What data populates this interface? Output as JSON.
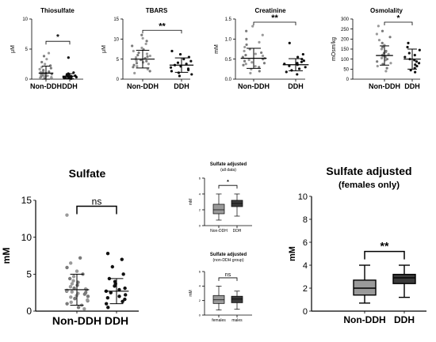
{
  "figure_colors": {
    "axis": "#000000",
    "dot_dark": "#111111",
    "dot_grey": "#7a7a7a",
    "box_light": "#9a9a9a",
    "box_dark": "#3a3a3a"
  },
  "chart_data": [
    {
      "id": "thiosulfate",
      "type": "scatter",
      "title": "Thiosulfate",
      "ylabel": "μM",
      "categories": [
        "Non-DDH",
        "DDH"
      ],
      "yticks": [
        "0",
        "5",
        "10"
      ],
      "ylim": [
        0,
        12
      ],
      "significance": "*",
      "groups": [
        {
          "name": "Non-DDH",
          "mean": 1.2,
          "sd": 1.4,
          "values": [
            0.1,
            0.2,
            0.3,
            0.3,
            0.4,
            0.5,
            0.5,
            0.6,
            0.7,
            0.8,
            0.9,
            1.0,
            1.0,
            1.1,
            1.2,
            1.3,
            1.4,
            1.5,
            1.6,
            1.8,
            2.0,
            2.2,
            2.4,
            2.7,
            3.0,
            3.4,
            4.0,
            4.6,
            5.2
          ]
        },
        {
          "name": "DDH",
          "mean": 0.6,
          "sd": 0.5,
          "values": [
            0.1,
            0.2,
            0.3,
            0.3,
            0.4,
            0.4,
            0.5,
            0.5,
            0.6,
            0.7,
            0.8,
            0.9,
            1.0,
            1.1,
            1.3,
            4.3
          ]
        }
      ]
    },
    {
      "id": "tbars",
      "type": "scatter",
      "title": "TBARS",
      "ylabel": "μM",
      "categories": [
        "Non-DDH",
        "DDH"
      ],
      "yticks": [
        "0",
        "5",
        "10",
        "15"
      ],
      "ylim": [
        0,
        15
      ],
      "significance": "**",
      "groups": [
        {
          "name": "Non-DDH",
          "mean": 5.0,
          "sd": 2.2,
          "values": [
            1.5,
            2.0,
            2.5,
            3.0,
            3.2,
            3.5,
            3.8,
            4.0,
            4.2,
            4.5,
            4.6,
            4.8,
            5.0,
            5.2,
            5.4,
            5.6,
            5.8,
            6.0,
            6.3,
            6.6,
            7.0,
            7.4,
            7.8,
            8.3,
            8.8,
            9.5,
            10.2,
            11.0
          ]
        },
        {
          "name": "DDH",
          "mean": 3.5,
          "sd": 1.8,
          "values": [
            0.8,
            1.2,
            1.6,
            2.0,
            2.3,
            2.6,
            2.9,
            3.2,
            3.5,
            3.8,
            4.1,
            4.5,
            5.0,
            5.5,
            6.2,
            7.0
          ]
        }
      ]
    },
    {
      "id": "creatinine",
      "type": "scatter",
      "title": "Creatinine",
      "ylabel": "mM",
      "categories": [
        "Non-DDH",
        "DDH"
      ],
      "yticks": [
        "0.0",
        "0.5",
        "1.0",
        "1.5"
      ],
      "ylim": [
        0,
        1.5
      ],
      "significance": "**",
      "groups": [
        {
          "name": "Non-DDH",
          "mean": 0.52,
          "sd": 0.25,
          "values": [
            0.15,
            0.2,
            0.25,
            0.3,
            0.32,
            0.35,
            0.38,
            0.4,
            0.42,
            0.45,
            0.48,
            0.5,
            0.52,
            0.55,
            0.58,
            0.6,
            0.63,
            0.66,
            0.7,
            0.75,
            0.8,
            0.86,
            0.92,
            1.0,
            1.1,
            1.2,
            1.32
          ]
        },
        {
          "name": "DDH",
          "mean": 0.36,
          "sd": 0.15,
          "values": [
            0.12,
            0.18,
            0.22,
            0.26,
            0.3,
            0.33,
            0.36,
            0.38,
            0.4,
            0.43,
            0.46,
            0.5,
            0.55,
            0.62,
            0.9
          ]
        }
      ]
    },
    {
      "id": "osmolality",
      "type": "scatter",
      "title": "Osmolality",
      "ylabel": "mOsm/kg",
      "categories": [
        "Non-DDH",
        "DDH"
      ],
      "yticks": [
        "0",
        "50",
        "100",
        "150",
        "200",
        "250",
        "300"
      ],
      "ylim": [
        0,
        300
      ],
      "significance": "*",
      "groups": [
        {
          "name": "Non-DDH",
          "mean": 118,
          "sd": 48,
          "values": [
            40,
            55,
            65,
            75,
            80,
            88,
            95,
            100,
            105,
            110,
            115,
            120,
            125,
            130,
            135,
            140,
            150,
            160,
            170,
            180,
            195,
            210,
            225,
            240,
            265
          ]
        },
        {
          "name": "DDH",
          "mean": 100,
          "sd": 50,
          "values": [
            35,
            45,
            55,
            65,
            72,
            80,
            88,
            95,
            100,
            110,
            120,
            130,
            145,
            160,
            180
          ]
        }
      ]
    },
    {
      "id": "sulfate",
      "type": "scatter",
      "title": "Sulfate",
      "ylabel": "mM",
      "categories": [
        "Non-DDH",
        "DDH"
      ],
      "yticks": [
        "0",
        "5",
        "10",
        "15"
      ],
      "ylim": [
        0,
        15
      ],
      "significance": "ns",
      "groups": [
        {
          "name": "Non-DDH",
          "mean": 2.9,
          "sd": 2.1,
          "values": [
            0.3,
            0.5,
            0.8,
            1.0,
            1.2,
            1.4,
            1.5,
            1.7,
            1.9,
            2.0,
            2.1,
            2.3,
            2.4,
            2.5,
            2.6,
            2.7,
            2.8,
            2.9,
            3.0,
            3.1,
            3.3,
            3.5,
            3.7,
            3.9,
            4.1,
            4.4,
            4.7,
            5.0,
            5.4,
            5.9,
            6.5,
            7.2,
            13.0
          ]
        },
        {
          "name": "DDH",
          "mean": 2.7,
          "sd": 1.7,
          "values": [
            0.5,
            1.0,
            1.3,
            1.6,
            1.8,
            2.0,
            2.2,
            2.5,
            2.7,
            2.9,
            3.1,
            3.4,
            3.7,
            4.0,
            4.4,
            5.0,
            6.0,
            7.0,
            7.8
          ]
        }
      ]
    },
    {
      "id": "sulfate_adj_all",
      "type": "box",
      "title": "Sulfate adjusted",
      "subtitle": "(all data)",
      "ylabel": "mM",
      "categories": [
        "Non-DDH",
        "DDH"
      ],
      "yticks": [
        "0",
        "2",
        "4",
        "6"
      ],
      "ylim": [
        0,
        6
      ],
      "significance": "*",
      "boxes": [
        {
          "name": "Non-DDH",
          "min": 0.7,
          "q1": 1.5,
          "median": 2.0,
          "q3": 2.7,
          "max": 4.0
        },
        {
          "name": "DDH",
          "min": 1.2,
          "q1": 2.4,
          "median": 2.8,
          "q3": 3.2,
          "max": 4.0
        }
      ]
    },
    {
      "id": "sulfate_adj_nonddh",
      "type": "box",
      "title": "Sulfate adjusted",
      "subtitle": "(non-DDH group)",
      "ylabel": "mM",
      "categories": [
        "females",
        "males"
      ],
      "yticks": [
        "0",
        "2",
        "4",
        "6"
      ],
      "ylim": [
        0,
        6
      ],
      "significance": "ns",
      "boxes": [
        {
          "name": "females",
          "min": 0.7,
          "q1": 1.6,
          "median": 2.1,
          "q3": 2.7,
          "max": 4.0
        },
        {
          "name": "males",
          "min": 0.8,
          "q1": 1.7,
          "median": 2.2,
          "q3": 2.6,
          "max": 3.3
        }
      ]
    },
    {
      "id": "sulfate_adj_females",
      "type": "box",
      "title": "Sulfate adjusted",
      "subtitle": "(females only)",
      "ylabel": "mM",
      "categories": [
        "Non-DDH",
        "DDH"
      ],
      "yticks": [
        "0",
        "2",
        "4",
        "6",
        "8",
        "10"
      ],
      "ylim": [
        0,
        10
      ],
      "significance": "**",
      "boxes": [
        {
          "name": "Non-DDH",
          "min": 0.7,
          "q1": 1.4,
          "median": 2.0,
          "q3": 2.7,
          "max": 4.0
        },
        {
          "name": "DDH",
          "min": 1.2,
          "q1": 2.4,
          "median": 2.9,
          "q3": 3.2,
          "max": 4.0
        }
      ]
    }
  ]
}
